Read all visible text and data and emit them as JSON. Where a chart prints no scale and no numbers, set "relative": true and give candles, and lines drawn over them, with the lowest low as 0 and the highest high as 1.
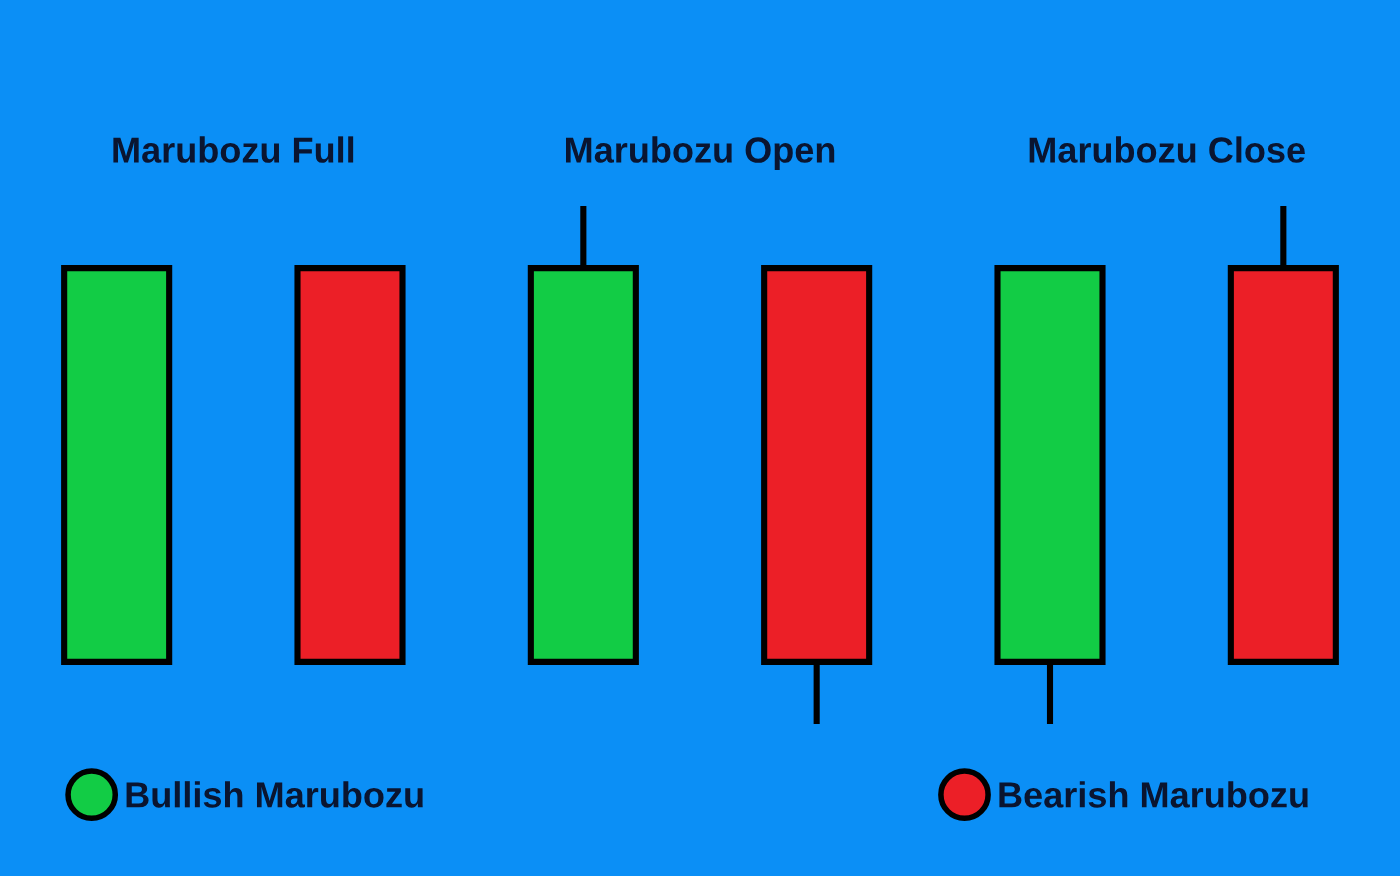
{
  "chart_data": {
    "type": "candlestick",
    "relative": true,
    "legend": "bottom",
    "categories": [
      null,
      null,
      null,
      null,
      null,
      null
    ],
    "annotations": [
      "Marubozu Full",
      "Marubozu Open",
      "Marubozu Close"
    ],
    "series": [
      {
        "name": "Bullish Marubozu",
        "color": "#12cc45",
        "ohlc": [
          [
            0.12,
            0.88,
            0.12,
            0.88
          ],
          null,
          [
            0.12,
            1,
            0.12,
            0.88
          ],
          null,
          [
            0.12,
            0.88,
            0,
            0.88
          ],
          null
        ]
      },
      {
        "name": "Bearish Marubozu",
        "color": "#ec1f27",
        "ohlc": [
          null,
          [
            0.88,
            0.88,
            0.12,
            0.12
          ],
          null,
          [
            0.88,
            0.88,
            0,
            0.12
          ],
          null,
          [
            0.88,
            1,
            0.12,
            0.12
          ]
        ]
      }
    ]
  }
}
